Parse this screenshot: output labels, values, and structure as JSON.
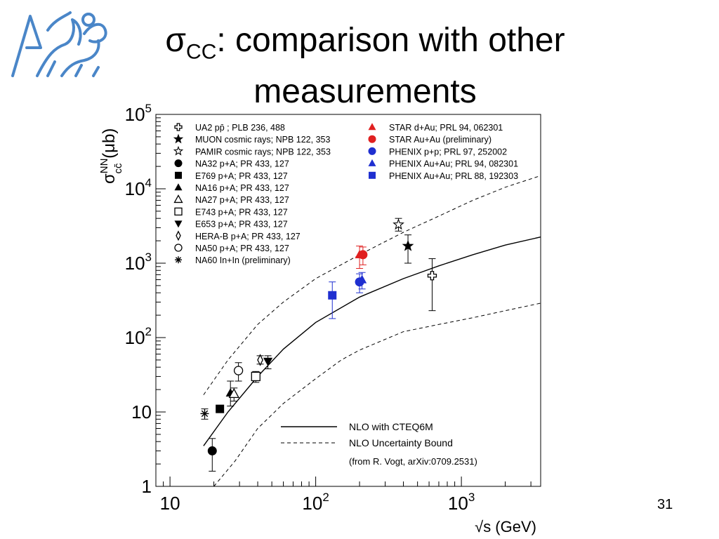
{
  "slide": {
    "title_symbol": "σ",
    "title_sub": "CC",
    "title_rest": ": comparison with other measurements",
    "page_number": "31",
    "logo_icon": "university-lion-logo-icon",
    "logo_color": "#4a86c8"
  },
  "chart_data": {
    "type": "scatter",
    "xscale": "log",
    "yscale": "log",
    "xlim": [
      8,
      3500
    ],
    "ylim": [
      1,
      100000
    ],
    "xlabel": "√s (GeV)",
    "ylabel": {
      "sym": "σ",
      "sup": "NN",
      "sub": "cc̄",
      "unit": "(μb)"
    },
    "xticks": [
      {
        "v": 10,
        "base": "10",
        "exp": ""
      },
      {
        "v": 100,
        "base": "10",
        "exp": "2"
      },
      {
        "v": 1000,
        "base": "10",
        "exp": "3"
      }
    ],
    "yticks": [
      {
        "v": 1,
        "base": "1",
        "exp": ""
      },
      {
        "v": 10,
        "base": "10",
        "exp": ""
      },
      {
        "v": 100,
        "base": "10",
        "exp": "2"
      },
      {
        "v": 1000,
        "base": "10",
        "exp": "3"
      },
      {
        "v": 10000,
        "base": "10",
        "exp": "4"
      },
      {
        "v": 100000,
        "base": "10",
        "exp": "5"
      }
    ],
    "curves": [
      {
        "name": "NLO with CTEQ6M",
        "style": "solid",
        "points": [
          [
            17,
            3.5
          ],
          [
            25,
            10
          ],
          [
            40,
            30
          ],
          [
            60,
            70
          ],
          [
            100,
            160
          ],
          [
            200,
            350
          ],
          [
            400,
            620
          ],
          [
            700,
            920
          ],
          [
            1200,
            1300
          ],
          [
            2000,
            1750
          ],
          [
            3500,
            2250
          ]
        ]
      },
      {
        "name": "NLO Uncertainty Bound",
        "style": "dashed",
        "points": [
          [
            17,
            17
          ],
          [
            25,
            50
          ],
          [
            40,
            150
          ],
          [
            60,
            300
          ],
          [
            100,
            620
          ],
          [
            200,
            1300
          ],
          [
            400,
            2600
          ],
          [
            700,
            4300
          ],
          [
            1200,
            7000
          ],
          [
            2000,
            10500
          ],
          [
            3500,
            15000
          ]
        ]
      },
      {
        "name": "",
        "style": "dashed",
        "points": [
          [
            20,
            1
          ],
          [
            28,
            2.2
          ],
          [
            40,
            6
          ],
          [
            60,
            13
          ],
          [
            100,
            28
          ],
          [
            150,
            50
          ],
          [
            200,
            68
          ],
          [
            400,
            120
          ],
          [
            700,
            150
          ],
          [
            1200,
            185
          ],
          [
            2000,
            230
          ],
          [
            3500,
            290
          ]
        ]
      }
    ],
    "series": [
      {
        "name": "UA2 pp̄ ; PLB 236, 488",
        "marker": "cross-open",
        "color": "#000000",
        "points": [
          {
            "x": 630,
            "y": 680,
            "lo": 230,
            "hi": 1150
          }
        ]
      },
      {
        "name": "MUON cosmic rays; NPB 122, 353",
        "marker": "star-filled",
        "color": "#000000",
        "points": [
          {
            "x": 430,
            "y": 1700,
            "lo": 1000,
            "hi": 2400
          }
        ]
      },
      {
        "name": "PAMIR cosmic rays; NPB 122, 353",
        "marker": "star-open",
        "color": "#000000",
        "points": [
          {
            "x": 370,
            "y": 3300,
            "lo": 2700,
            "hi": 4000
          }
        ]
      },
      {
        "name": "NA32 p+A; PR 433, 127",
        "marker": "circle-filled",
        "color": "#000000",
        "points": [
          {
            "x": 19.5,
            "y": 3,
            "lo": 1.6,
            "hi": 4.4
          }
        ]
      },
      {
        "name": "E769 p+A; PR 433, 127",
        "marker": "square-filled",
        "color": "#000000",
        "points": [
          {
            "x": 22,
            "y": 11,
            "lo": 10,
            "hi": 12
          }
        ]
      },
      {
        "name": "NA16 p+A; PR 433, 127",
        "marker": "triangle-filled",
        "color": "#000000",
        "points": [
          {
            "x": 26,
            "y": 18,
            "lo": 12,
            "hi": 26
          }
        ]
      },
      {
        "name": "NA27 p+A; PR 433, 127",
        "marker": "triangle-open",
        "color": "#000000",
        "points": [
          {
            "x": 27.5,
            "y": 17.5,
            "lo": 14,
            "hi": 21
          }
        ]
      },
      {
        "name": "E743 p+A; PR 433, 127",
        "marker": "square-open",
        "color": "#000000",
        "points": [
          {
            "x": 38.8,
            "y": 30,
            "lo": 25,
            "hi": 35
          }
        ]
      },
      {
        "name": "E653 p+A; PR 433, 127",
        "marker": "triangle-down-filled",
        "color": "#000000",
        "points": [
          {
            "x": 47,
            "y": 48,
            "lo": 38,
            "hi": 57
          }
        ]
      },
      {
        "name": "HERA-B p+A; PR 433, 127",
        "marker": "diamond-open",
        "color": "#000000",
        "points": [
          {
            "x": 41.6,
            "y": 50,
            "lo": 44,
            "hi": 57
          }
        ]
      },
      {
        "name": "NA50 p+A; PR 433, 127",
        "marker": "circle-open",
        "color": "#000000",
        "points": [
          {
            "x": 29.5,
            "y": 36,
            "lo": 26,
            "hi": 46
          }
        ]
      },
      {
        "name": "NA60 In+In (preliminary)",
        "marker": "asterisk",
        "color": "#000000",
        "points": [
          {
            "x": 17.3,
            "y": 9.5,
            "lo": 8,
            "hi": 11
          }
        ]
      },
      {
        "name": "STAR d+Au; PRL 94, 062301",
        "marker": "triangle-filled",
        "color": "#e02020",
        "points": [
          {
            "x": 200,
            "y": 1300,
            "lo": 850,
            "hi": 1700
          }
        ]
      },
      {
        "name": "STAR Au+Au (preliminary)",
        "marker": "circle-filled",
        "color": "#e02020",
        "points": [
          {
            "x": 211,
            "y": 1300,
            "lo": 950,
            "hi": 1650
          }
        ]
      },
      {
        "name": "PHENIX p+p; PRL 97, 252002",
        "marker": "circle-filled",
        "color": "#1f2fd0",
        "points": [
          {
            "x": 200,
            "y": 560,
            "lo": 400,
            "hi": 720
          }
        ]
      },
      {
        "name": "PHENIX Au+Au; PRL 94, 082301",
        "marker": "triangle-filled",
        "color": "#1f2fd0",
        "points": [
          {
            "x": 208,
            "y": 600,
            "lo": 450,
            "hi": 750
          }
        ]
      },
      {
        "name": "PHENIX Au+Au; PRL 88, 192303",
        "marker": "square-filled",
        "color": "#1f2fd0",
        "points": [
          {
            "x": 130,
            "y": 370,
            "lo": 180,
            "hi": 560
          }
        ]
      }
    ],
    "legend_note": "(from R. Vogt, arXiv:0709.2531)",
    "legend_placement": "top (two columns) and bottom-right"
  }
}
